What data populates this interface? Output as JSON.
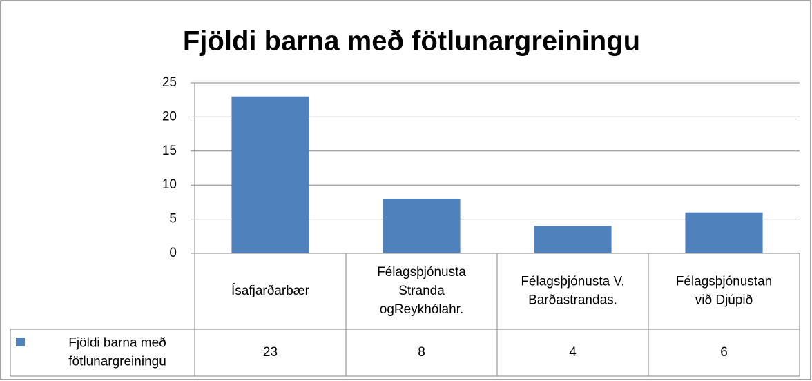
{
  "chart_data": {
    "type": "bar",
    "title": "Fjöldi barna með fötlunargreiningu",
    "categories": [
      "Ísafjarðarbær",
      "Félagsþjónusta Stranda ogReykhólahr.",
      "Félagsþjónusta V. Barðastrandas.",
      "Félagsþjónustan við Djúpið"
    ],
    "series": [
      {
        "name": "Fjöldi barna með fötlunargreiningu",
        "color": "#4f81bd",
        "values": [
          23,
          8,
          4,
          6
        ]
      }
    ],
    "ylim": [
      0,
      25
    ],
    "yticks": [
      0,
      5,
      10,
      15,
      20,
      25
    ],
    "grid": true,
    "data_table": true
  }
}
